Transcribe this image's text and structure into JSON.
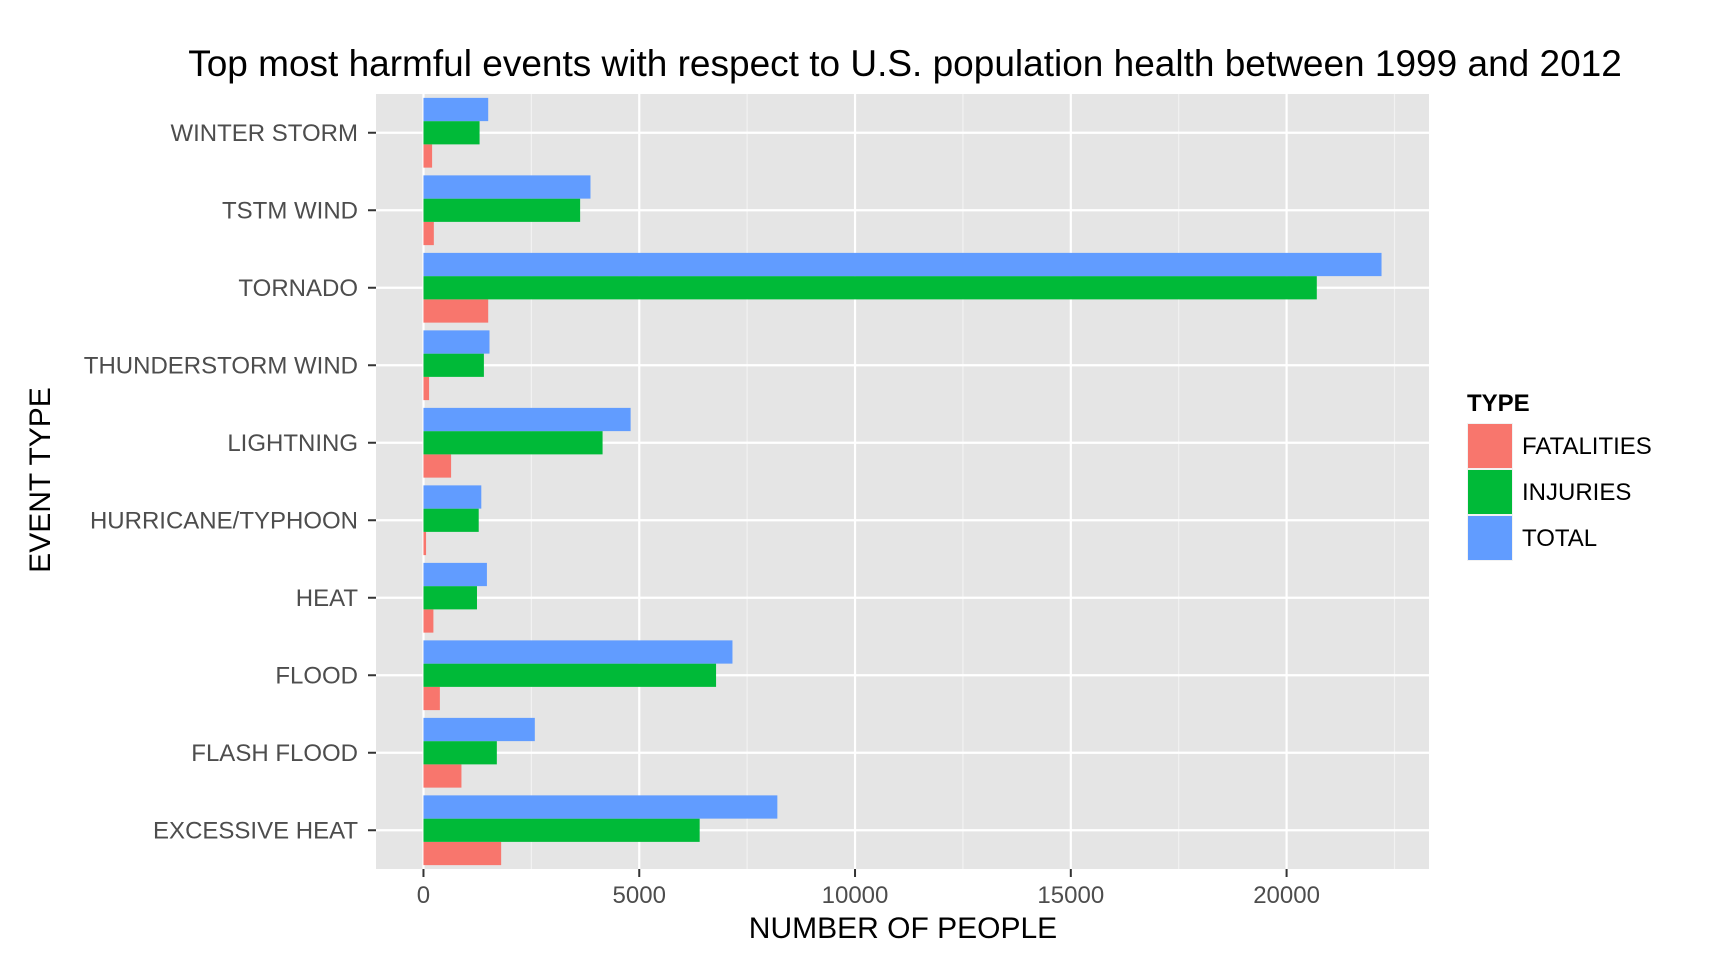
{
  "chart_data": {
    "type": "bar",
    "orientation": "horizontal",
    "title": "Top most harmful events with respect to U.S. population health between 1999 and 2012",
    "xlabel": "NUMBER OF PEOPLE",
    "ylabel": "EVENT TYPE",
    "categories": [
      "EXCESSIVE HEAT",
      "FLASH FLOOD",
      "FLOOD",
      "HEAT",
      "HURRICANE/TYPHOON",
      "LIGHTNING",
      "THUNDERSTORM WIND",
      "TORNADO",
      "TSTM WIND",
      "WINTER STORM"
    ],
    "series": [
      {
        "name": "FATALITIES",
        "color": "#F8766D",
        "values": [
          1800,
          880,
          380,
          230,
          60,
          640,
          130,
          1500,
          240,
          200
        ]
      },
      {
        "name": "INJURIES",
        "color": "#00BA38",
        "values": [
          6400,
          1700,
          6780,
          1240,
          1280,
          4150,
          1400,
          20700,
          3630,
          1300
        ]
      },
      {
        "name": "TOTAL",
        "color": "#619CFF",
        "values": [
          8200,
          2580,
          7160,
          1470,
          1340,
          4800,
          1530,
          22200,
          3870,
          1500
        ]
      }
    ],
    "xlim": [
      -1100,
      23300
    ],
    "xticks": [
      0,
      5000,
      10000,
      15000,
      20000
    ],
    "xtick_labels": [
      "0",
      "5000",
      "10000",
      "15000",
      "20000"
    ],
    "grid": true,
    "legend": {
      "title": "TYPE",
      "placement": "right"
    },
    "panel_background": "#E5E5E5",
    "grid_color": "#FFFFFF"
  }
}
